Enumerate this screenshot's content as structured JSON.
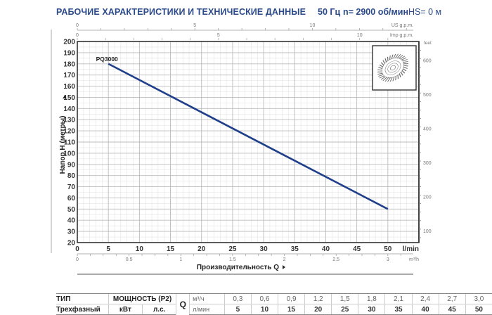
{
  "header": {
    "title": "РАБОЧИЕ ХАРАКТЕРИСТИКИ И ТЕХНИЧЕСКИЕ ДАННЫЕ",
    "frequency": "50 Гц",
    "speed": "n= 2900 об/мин",
    "hs": "HS= 0 м"
  },
  "chart_data": {
    "type": "line",
    "title": "РАБОЧИЕ ХАРАКТЕРИСТИКИ И ТЕХНИЧЕСКИЕ ДАННЫЕ",
    "xlabel": "Производительность Q",
    "ylabel": "Напор H (метры)",
    "x_unit": "l/min",
    "xlim": [
      0,
      55
    ],
    "ylim": [
      20,
      200
    ],
    "x_ticks": [
      0,
      5,
      10,
      15,
      20,
      25,
      30,
      35,
      40,
      45,
      50
    ],
    "y_ticks": [
      20,
      30,
      40,
      50,
      60,
      70,
      80,
      90,
      100,
      110,
      120,
      130,
      140,
      150,
      160,
      170,
      180,
      190,
      200
    ],
    "grid": true,
    "series": [
      {
        "name": "PQ3000",
        "color": "#1f3f8a",
        "x": [
          5,
          50
        ],
        "y": [
          180,
          50
        ]
      }
    ],
    "secondary_axes": {
      "bottom_m3h": {
        "label": "m³/h",
        "ticks": [
          "0",
          "0.5",
          "1",
          "1.5",
          "2",
          "2.5",
          "3"
        ]
      },
      "top_us_gpm": {
        "label": "US g.p.m.",
        "ticks": [
          "0",
          "5",
          "10"
        ]
      },
      "top_imp_gpm": {
        "label": "Imp g.p.m.",
        "ticks": [
          "0",
          "5",
          "10"
        ]
      },
      "right_feet": {
        "label": "feet",
        "ticks": [
          "100",
          "200",
          "300",
          "400",
          "500",
          "600"
        ]
      }
    }
  },
  "axes": {
    "y_title": "Напор H (метры)",
    "x_title": "Производительность Q",
    "x_unit": "l/min",
    "m3h_unit": "m³/h",
    "us_gpm": "US g.p.m.",
    "imp_gpm": "Imp g.p.m.",
    "feet": "feet",
    "curve_label": "PQ3000"
  },
  "table": {
    "type_header": "ТИП",
    "power_header": "МОЩНОСТЬ (P2)",
    "q_label": "Q",
    "unit_m3h": "м³/ч",
    "unit_lmin": "л/мин",
    "row_type": "Трехфазный",
    "kw": "кВт",
    "hp": "л.с.",
    "m3h_values": [
      "0,3",
      "0,6",
      "0,9",
      "1,2",
      "1,5",
      "1,8",
      "2,1",
      "2,4",
      "2,7",
      "3,0"
    ],
    "lmin_values": [
      "5",
      "10",
      "15",
      "20",
      "25",
      "30",
      "35",
      "40",
      "45",
      "50"
    ]
  }
}
